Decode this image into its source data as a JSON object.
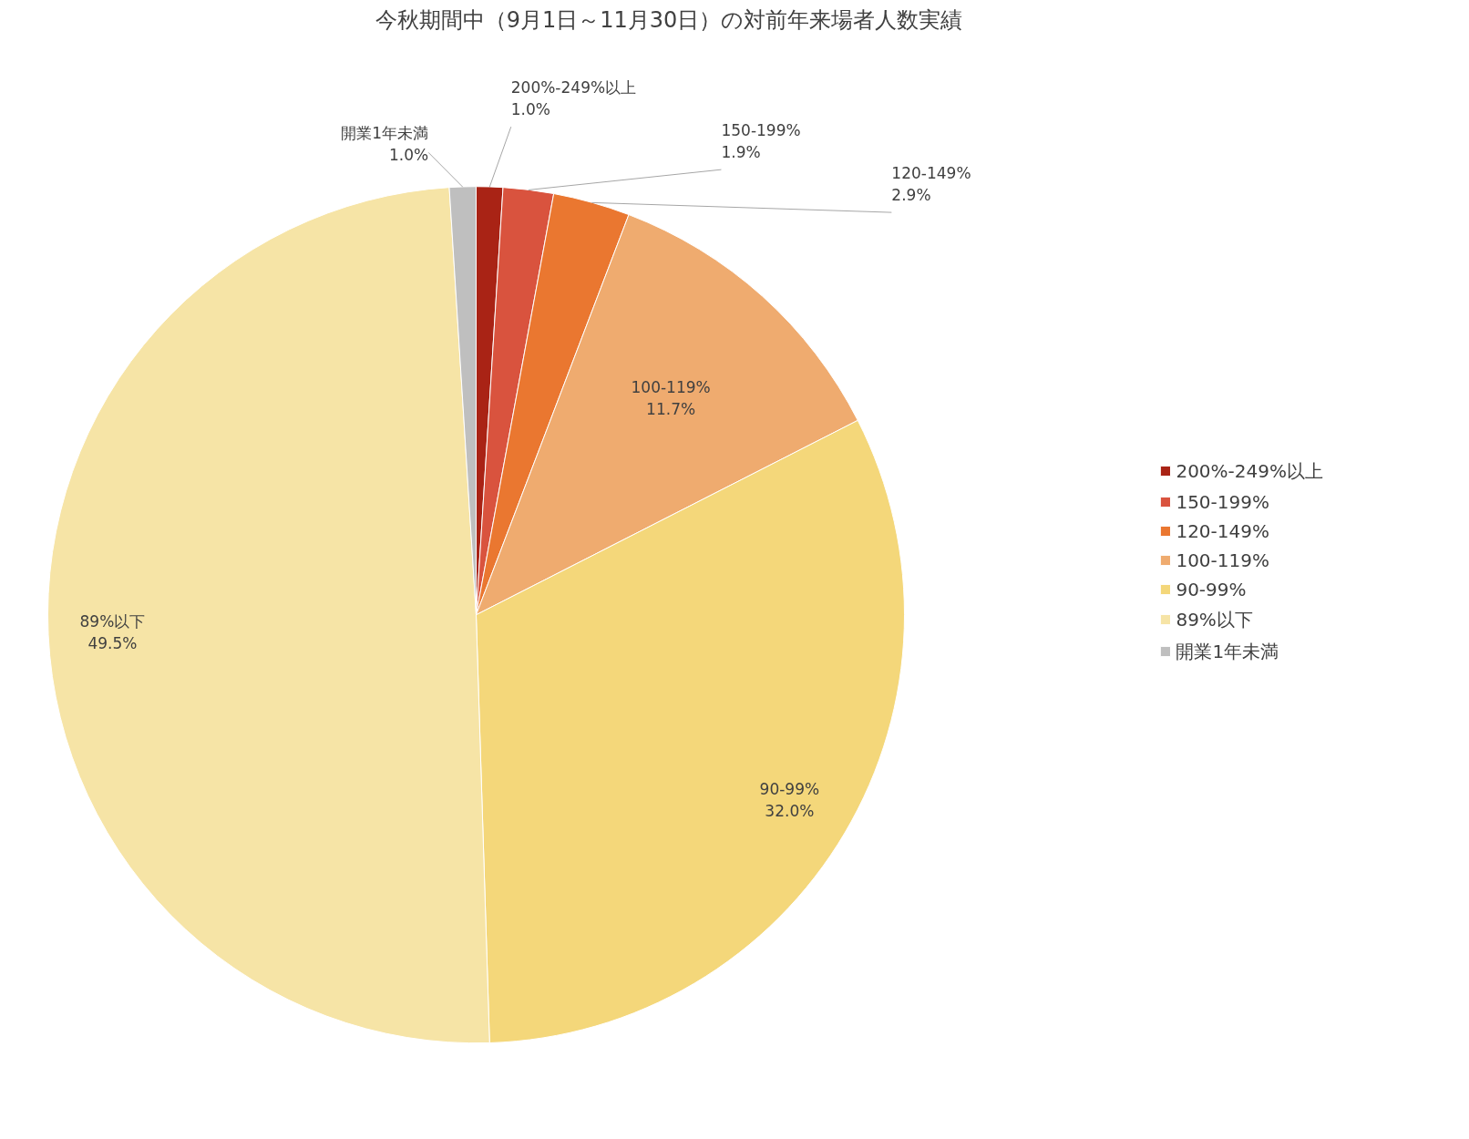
{
  "chart_data": {
    "type": "pie",
    "title": "今秋期間中（9月1日～11月30日）の対前年来場者人数実績",
    "categories": [
      "200%-249%以上",
      "150-199%",
      "120-149%",
      "100-119%",
      "90-99%",
      "89%以下",
      "開業1年未満"
    ],
    "values": [
      1.0,
      1.9,
      2.9,
      11.7,
      32.0,
      49.5,
      1.0
    ],
    "colors": [
      "#a92315",
      "#d9533e",
      "#ea7730",
      "#efab6f",
      "#f4d77a",
      "#f6e4a6",
      "#bfbfbf"
    ],
    "value_labels": [
      "1.0%",
      "1.9%",
      "2.9%",
      "11.7%",
      "32.0%",
      "49.5%",
      "1.0%"
    ],
    "legend": "right"
  }
}
